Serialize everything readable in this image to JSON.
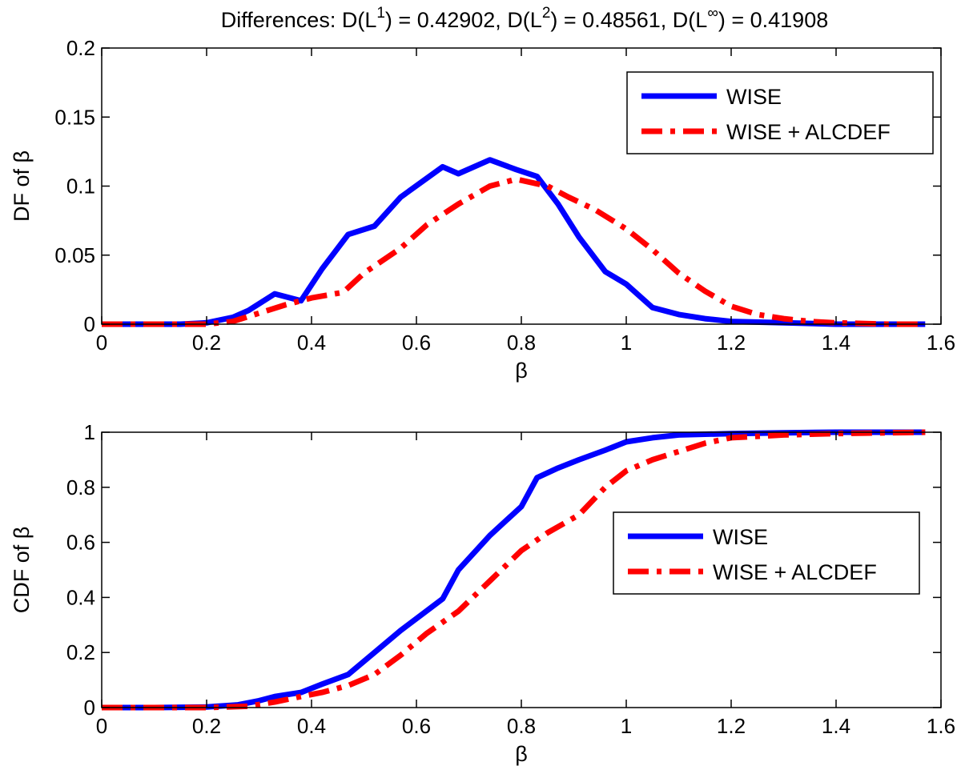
{
  "figure": {
    "title_prefix": "Differences: ",
    "title_terms": [
      {
        "label": "D(L",
        "sup": "1",
        "close": ")",
        "value": " = 0.42902",
        "sep": ", "
      },
      {
        "label": "D(L",
        "sup": "2",
        "close": ")",
        "value": " = 0.48561",
        "sep": ", "
      },
      {
        "label": "D(L",
        "sup": "∞",
        "close": ")",
        "value": " = 0.41908",
        "sep": ""
      }
    ]
  },
  "colors": {
    "wise": "#0000ff",
    "wise_alcdef": "#ff0000",
    "axis": "#000000",
    "background": "#ffffff"
  },
  "chart_data": [
    {
      "id": "df",
      "type": "line",
      "ylabel": "DF of β",
      "xlabel": "β",
      "xlim": [
        0,
        1.6
      ],
      "ylim": [
        0,
        0.2
      ],
      "xticks": [
        0,
        0.2,
        0.4,
        0.6,
        0.8,
        1,
        1.2,
        1.4,
        1.6
      ],
      "xtick_labels": [
        "0",
        "0.2",
        "0.4",
        "0.6",
        "0.8",
        "1",
        "1.2",
        "1.4",
        "1.6"
      ],
      "yticks": [
        0,
        0.05,
        0.1,
        0.15,
        0.2
      ],
      "ytick_labels": [
        "0",
        "0.05",
        "0.1",
        "0.15",
        "0.2"
      ],
      "legend_position": "top-right",
      "series": [
        {
          "name": "WISE",
          "style": "solid",
          "x": [
            0,
            0.05,
            0.1,
            0.15,
            0.2,
            0.25,
            0.28,
            0.33,
            0.38,
            0.42,
            0.47,
            0.52,
            0.57,
            0.65,
            0.68,
            0.74,
            0.79,
            0.83,
            0.87,
            0.91,
            0.96,
            1.0,
            1.05,
            1.1,
            1.15,
            1.2,
            1.3,
            1.4,
            1.5,
            1.57
          ],
          "y": [
            0.0,
            0.0,
            0.0,
            0.0,
            0.001,
            0.005,
            0.01,
            0.022,
            0.017,
            0.04,
            0.065,
            0.071,
            0.092,
            0.114,
            0.109,
            0.119,
            0.112,
            0.107,
            0.087,
            0.063,
            0.038,
            0.029,
            0.012,
            0.007,
            0.004,
            0.002,
            0.001,
            0.0,
            0.0,
            0.0
          ]
        },
        {
          "name": "WISE + ALCDEF",
          "style": "dashdot",
          "x": [
            0,
            0.05,
            0.1,
            0.15,
            0.2,
            0.25,
            0.3,
            0.35,
            0.4,
            0.46,
            0.5,
            0.57,
            0.62,
            0.68,
            0.74,
            0.79,
            0.85,
            0.89,
            0.94,
            1.0,
            1.05,
            1.1,
            1.15,
            1.2,
            1.25,
            1.3,
            1.35,
            1.4,
            1.5,
            1.57
          ],
          "y": [
            0.0,
            0.0,
            0.0,
            0.0,
            0.0,
            0.002,
            0.008,
            0.014,
            0.019,
            0.023,
            0.037,
            0.055,
            0.072,
            0.087,
            0.1,
            0.105,
            0.1,
            0.092,
            0.083,
            0.069,
            0.054,
            0.037,
            0.024,
            0.013,
            0.007,
            0.004,
            0.002,
            0.001,
            0.0,
            0.0
          ]
        }
      ]
    },
    {
      "id": "cdf",
      "type": "line",
      "ylabel": "CDF of β",
      "xlabel": "β",
      "xlim": [
        0,
        1.6
      ],
      "ylim": [
        0,
        1
      ],
      "xticks": [
        0,
        0.2,
        0.4,
        0.6,
        0.8,
        1,
        1.2,
        1.4,
        1.6
      ],
      "xtick_labels": [
        "0",
        "0.2",
        "0.4",
        "0.6",
        "0.8",
        "1",
        "1.2",
        "1.4",
        "1.6"
      ],
      "yticks": [
        0,
        0.2,
        0.4,
        0.6,
        0.8,
        1
      ],
      "ytick_labels": [
        "0",
        "0.2",
        "0.4",
        "0.6",
        "0.8",
        "1"
      ],
      "legend_position": "center-right",
      "series": [
        {
          "name": "WISE",
          "style": "solid",
          "x": [
            0,
            0.1,
            0.2,
            0.26,
            0.3,
            0.33,
            0.38,
            0.42,
            0.47,
            0.52,
            0.57,
            0.65,
            0.68,
            0.74,
            0.8,
            0.82,
            0.83,
            0.87,
            0.91,
            0.96,
            1.0,
            1.05,
            1.1,
            1.2,
            1.3,
            1.4,
            1.57
          ],
          "y": [
            0,
            0,
            0.002,
            0.01,
            0.025,
            0.04,
            0.055,
            0.085,
            0.12,
            0.2,
            0.28,
            0.395,
            0.5,
            0.625,
            0.73,
            0.8,
            0.835,
            0.87,
            0.9,
            0.935,
            0.965,
            0.98,
            0.99,
            0.995,
            0.998,
            1.0,
            1.0
          ]
        },
        {
          "name": "WISE + ALCDEF",
          "style": "dashdot",
          "x": [
            0,
            0.1,
            0.2,
            0.28,
            0.33,
            0.38,
            0.42,
            0.47,
            0.52,
            0.57,
            0.62,
            0.68,
            0.74,
            0.8,
            0.85,
            0.91,
            0.96,
            1.0,
            1.05,
            1.1,
            1.15,
            1.2,
            1.3,
            1.4,
            1.57
          ],
          "y": [
            0,
            0,
            0,
            0.005,
            0.02,
            0.04,
            0.055,
            0.08,
            0.12,
            0.19,
            0.27,
            0.35,
            0.46,
            0.57,
            0.635,
            0.7,
            0.8,
            0.86,
            0.9,
            0.93,
            0.96,
            0.98,
            0.99,
            0.995,
            1.0
          ]
        }
      ]
    }
  ]
}
